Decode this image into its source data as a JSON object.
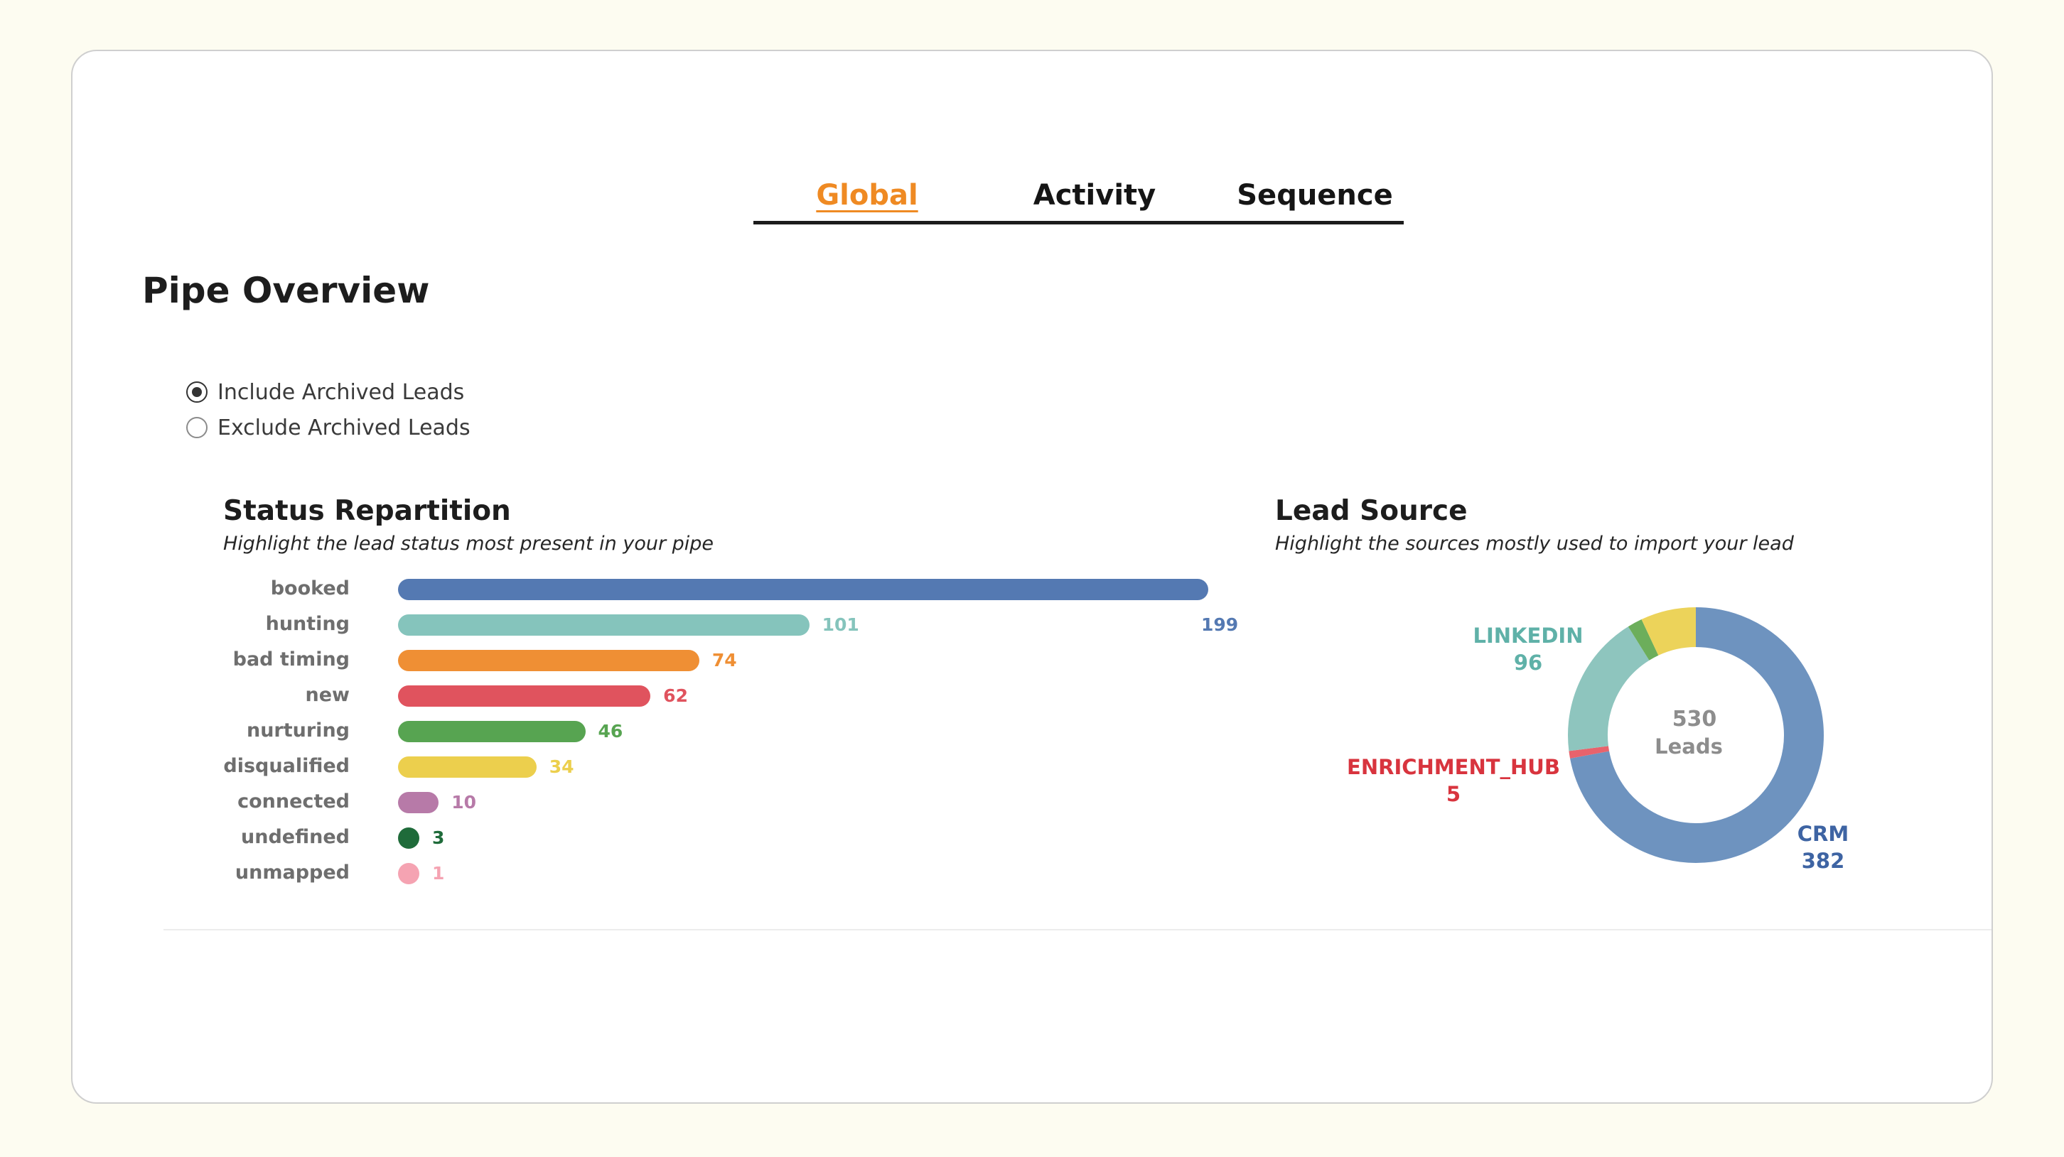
{
  "tabs": [
    {
      "label": "Global",
      "active": true
    },
    {
      "label": "Activity",
      "active": false
    },
    {
      "label": "Sequence",
      "active": false
    }
  ],
  "pipe_overview": {
    "title": "Pipe Overview",
    "options": [
      {
        "label": "Include Archived Leads",
        "checked": true
      },
      {
        "label": "Exclude Archived Leads",
        "checked": false
      }
    ]
  },
  "status_repartition": {
    "title": "Status Repartition",
    "subtitle": "Highlight the lead status most present in your pipe"
  },
  "lead_source": {
    "title": "Lead Source",
    "subtitle": "Highlight the sources mostly used to import your lead",
    "center_total": "530",
    "center_label": "Leads"
  },
  "chart_data": [
    {
      "type": "bar",
      "orientation": "horizontal",
      "categories": [
        "booked",
        "hunting",
        "bad timing",
        "new",
        "nurturing",
        "disqualified",
        "connected",
        "undefined",
        "unmapped"
      ],
      "values": [
        199,
        101,
        74,
        62,
        46,
        34,
        10,
        3,
        1
      ],
      "colors": [
        "#5479b2",
        "#85c4bc",
        "#ef8f34",
        "#e0535e",
        "#57a451",
        "#eccf4d",
        "#b77aa8",
        "#1f6b3a",
        "#f5a3b2"
      ],
      "xlim": [
        0,
        199
      ]
    },
    {
      "type": "pie",
      "donut": true,
      "categories": [
        "CRM",
        "ENRICHMENT_HUB",
        "LINKEDIN",
        "",
        ""
      ],
      "values": [
        382,
        5,
        96,
        10,
        37
      ],
      "labels_shown": [
        "CRM",
        "ENRICHMENT_HUB",
        "LINKEDIN"
      ],
      "colors": [
        "#6e93bf",
        "#e8636c",
        "#8ec5be",
        "#6cae5b",
        "#ecd35a"
      ],
      "label_colors": [
        "#3e64a3",
        "#d8343e",
        "#5fb1a8"
      ]
    }
  ]
}
